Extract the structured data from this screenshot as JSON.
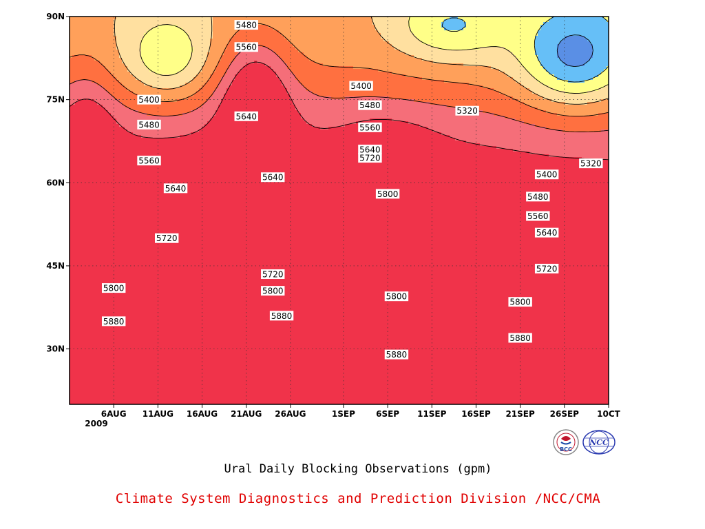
{
  "chart_data": {
    "type": "heatmap",
    "subtype": "filled-contour (time-latitude Hovmöller)",
    "title": "Ural Daily Blocking Observations (gpm)",
    "xlabel": "",
    "ylabel": "",
    "x_ticks": [
      "6AUG",
      "11AUG",
      "16AUG",
      "21AUG",
      "26AUG",
      "1SEP",
      "6SEP",
      "11SEP",
      "16SEP",
      "21SEP",
      "26SEP",
      "10CT"
    ],
    "x_year_label": "2009",
    "y_ticks": [
      "90N",
      "75N",
      "60N",
      "45N",
      "30N"
    ],
    "x_range": [
      "2009-08-01",
      "2009-10-01"
    ],
    "y_range": [
      20,
      90
    ],
    "grid": "dotted",
    "contour_levels": [
      5320,
      5400,
      5480,
      5560,
      5640,
      5720,
      5800,
      5880
    ],
    "fill_colors": {
      "below_5320": "#1010a0",
      "5320_5400": "#4545e5",
      "5400_5480": "#5a8fe5",
      "5480_5560": "#66bff7",
      "5560_5640": "#ffff88",
      "5640_5720": "#ffe0a0",
      "5720_5800": "#ffa05a",
      "5800_5880": "#ff7040",
      "5880_5960": "#f56e79",
      "above_5960": "#f0334a"
    },
    "contour_labels": [
      {
        "value": "5320",
        "date": "2009-09-15",
        "lat": 73.0
      },
      {
        "value": "5320",
        "date": "2009-09-29",
        "lat": 63.5
      },
      {
        "value": "5400",
        "date": "2009-08-10",
        "lat": 75.0
      },
      {
        "value": "5400",
        "date": "2009-09-03",
        "lat": 77.5
      },
      {
        "value": "5400",
        "date": "2009-09-24",
        "lat": 61.5
      },
      {
        "value": "5480",
        "date": "2009-08-10",
        "lat": 70.5
      },
      {
        "value": "5480",
        "date": "2009-08-21",
        "lat": 88.5
      },
      {
        "value": "5480",
        "date": "2009-09-04",
        "lat": 74.0
      },
      {
        "value": "5480",
        "date": "2009-09-23",
        "lat": 57.5
      },
      {
        "value": "5560",
        "date": "2009-08-10",
        "lat": 64.0
      },
      {
        "value": "5560",
        "date": "2009-08-21",
        "lat": 84.5
      },
      {
        "value": "5560",
        "date": "2009-09-04",
        "lat": 70.0
      },
      {
        "value": "5560",
        "date": "2009-09-23",
        "lat": 54.0
      },
      {
        "value": "5640",
        "date": "2009-08-13",
        "lat": 59.0
      },
      {
        "value": "5640",
        "date": "2009-08-21",
        "lat": 72.0
      },
      {
        "value": "5640",
        "date": "2009-08-24",
        "lat": 61.0
      },
      {
        "value": "5640",
        "date": "2009-09-04",
        "lat": 66.0
      },
      {
        "value": "5640",
        "date": "2009-09-24",
        "lat": 51.0
      },
      {
        "value": "5720",
        "date": "2009-08-12",
        "lat": 50.0
      },
      {
        "value": "5720",
        "date": "2009-08-24",
        "lat": 43.5
      },
      {
        "value": "5720",
        "date": "2009-09-04",
        "lat": 64.5
      },
      {
        "value": "5720",
        "date": "2009-09-24",
        "lat": 44.5
      },
      {
        "value": "5800",
        "date": "2009-08-06",
        "lat": 41.0
      },
      {
        "value": "5800",
        "date": "2009-08-24",
        "lat": 40.5
      },
      {
        "value": "5800",
        "date": "2009-09-06",
        "lat": 58.0
      },
      {
        "value": "5800",
        "date": "2009-09-07",
        "lat": 39.5
      },
      {
        "value": "5800",
        "date": "2009-09-21",
        "lat": 38.5
      },
      {
        "value": "5880",
        "date": "2009-08-06",
        "lat": 35.0
      },
      {
        "value": "5880",
        "date": "2009-08-25",
        "lat": 36.0
      },
      {
        "value": "5880",
        "date": "2009-09-07",
        "lat": 29.0
      },
      {
        "value": "5880",
        "date": "2009-09-21",
        "lat": 32.0
      }
    ]
  },
  "caption": "Ural Daily Blocking Observations (gpm)",
  "credit": "Climate System Diagnostics and Prediction Division /NCC/CMA",
  "logos": {
    "bcc": {
      "text": "BCC",
      "color": "#c0142c"
    },
    "ncc": {
      "text": "NCC",
      "color": "#2a3ab0"
    }
  }
}
